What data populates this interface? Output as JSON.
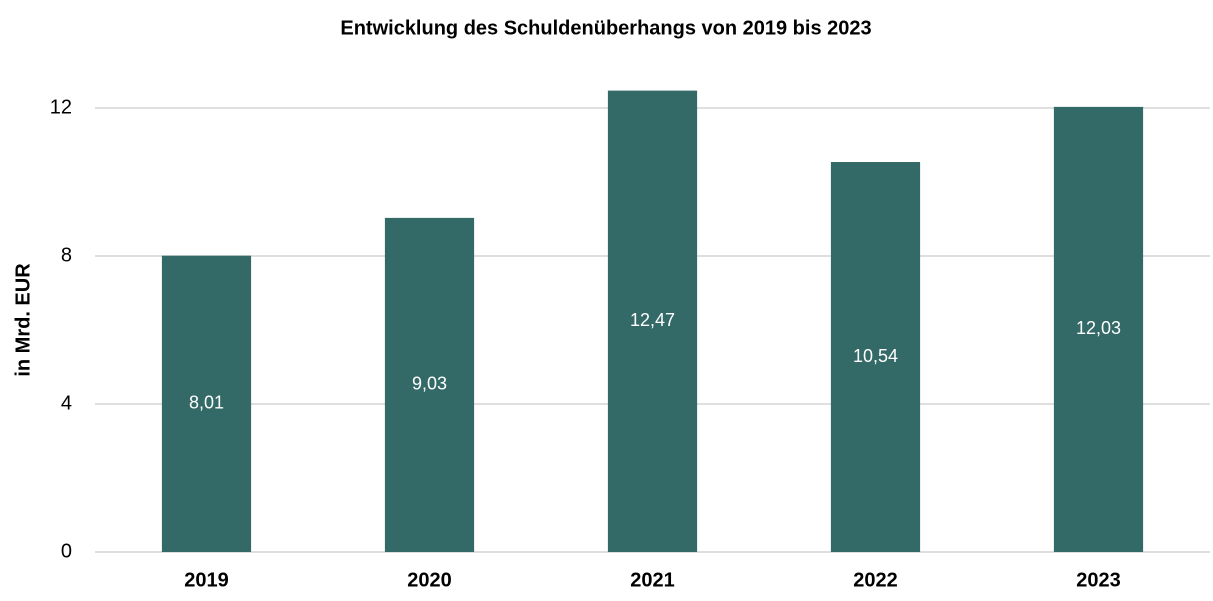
{
  "chart_data": {
    "type": "bar",
    "title": "Entwicklung des Schuldenüberhangs von 2019 bis 2023",
    "y_label": "in Mrd. EUR",
    "categories": [
      "2019",
      "2020",
      "2021",
      "2022",
      "2023"
    ],
    "values": [
      8.01,
      9.03,
      12.47,
      10.54,
      12.03
    ],
    "value_labels": [
      "8,01",
      "9,03",
      "12,47",
      "10,54",
      "12,03"
    ],
    "color": "#336966",
    "ylim": [
      0,
      12.5
    ],
    "yticks": [
      0,
      4,
      8,
      12
    ],
    "grid": true
  }
}
